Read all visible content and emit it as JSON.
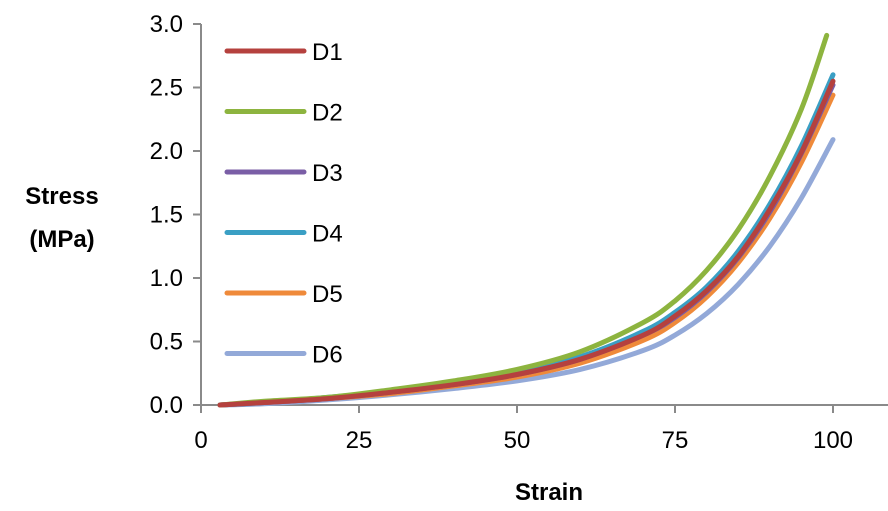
{
  "chart_data": {
    "type": "line",
    "title": "",
    "xlabel": "Strain",
    "ylabel_lines": [
      "Stress",
      "(MPa)"
    ],
    "xlim": [
      0,
      100
    ],
    "ylim": [
      0,
      3.0
    ],
    "xticks": [
      0,
      25,
      50,
      75,
      100
    ],
    "xtick_labels": [
      "0",
      "25",
      "50",
      "75",
      "100"
    ],
    "yticks": [
      0,
      0.5,
      1.0,
      1.5,
      2.0,
      2.5,
      3.0
    ],
    "ytick_labels": [
      "0.0",
      "0.5",
      "1.0",
      "1.5",
      "2.0",
      "2.5",
      "3.0"
    ],
    "grid": false,
    "legend_position": "top-left",
    "series": [
      {
        "name": "D1",
        "color": "#b5413e",
        "x": [
          3,
          10,
          20,
          30,
          40,
          50,
          60,
          70,
          75,
          80,
          85,
          90,
          95,
          100
        ],
        "y": [
          0,
          0.02,
          0.05,
          0.1,
          0.16,
          0.24,
          0.36,
          0.55,
          0.7,
          0.9,
          1.17,
          1.54,
          1.99,
          2.55
        ]
      },
      {
        "name": "D2",
        "color": "#8db43f",
        "x": [
          3,
          10,
          20,
          30,
          40,
          50,
          60,
          70,
          75,
          80,
          85,
          90,
          95,
          99
        ],
        "y": [
          0,
          0.03,
          0.06,
          0.12,
          0.19,
          0.28,
          0.42,
          0.65,
          0.82,
          1.06,
          1.38,
          1.8,
          2.33,
          2.91
        ]
      },
      {
        "name": "D3",
        "color": "#7a5ea6",
        "x": [
          3,
          10,
          20,
          30,
          40,
          50,
          60,
          70,
          75,
          80,
          85,
          90,
          95,
          100
        ],
        "y": [
          0,
          0.02,
          0.05,
          0.1,
          0.16,
          0.24,
          0.36,
          0.55,
          0.69,
          0.89,
          1.16,
          1.52,
          1.98,
          2.52
        ]
      },
      {
        "name": "D4",
        "color": "#3a9fc4",
        "x": [
          3,
          10,
          20,
          30,
          40,
          50,
          60,
          70,
          75,
          80,
          85,
          90,
          95,
          100
        ],
        "y": [
          0,
          0.02,
          0.06,
          0.11,
          0.17,
          0.26,
          0.38,
          0.58,
          0.73,
          0.93,
          1.21,
          1.58,
          2.04,
          2.6
        ]
      },
      {
        "name": "D5",
        "color": "#ef8a3a",
        "x": [
          3,
          10,
          20,
          30,
          40,
          50,
          60,
          70,
          75,
          80,
          85,
          90,
          95,
          100
        ],
        "y": [
          0,
          0.02,
          0.05,
          0.09,
          0.15,
          0.22,
          0.33,
          0.51,
          0.65,
          0.85,
          1.12,
          1.47,
          1.91,
          2.44
        ]
      },
      {
        "name": "D6",
        "color": "#93a9d8",
        "x": [
          3,
          10,
          20,
          30,
          40,
          50,
          60,
          70,
          75,
          80,
          85,
          90,
          95,
          100
        ],
        "y": [
          0,
          0.01,
          0.04,
          0.08,
          0.13,
          0.19,
          0.28,
          0.43,
          0.55,
          0.72,
          0.95,
          1.25,
          1.63,
          2.09
        ]
      }
    ]
  }
}
